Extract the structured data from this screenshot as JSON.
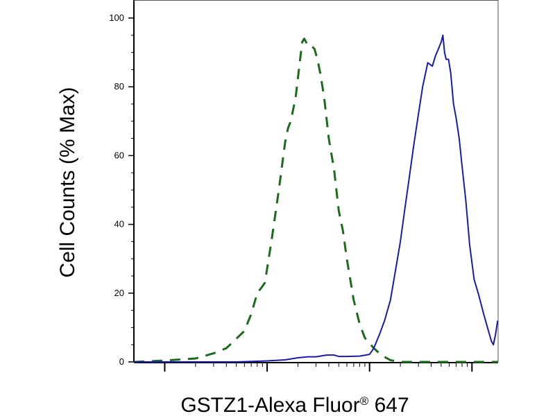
{
  "chart_data": {
    "type": "line",
    "xlabel_main": "GSTZ1-Alexa Fluor",
    "xlabel_mark": "®",
    "xlabel_tail": " 647",
    "ylabel": "Cell Counts (% Max)",
    "x_scale": "log",
    "xlim": [
      0.5,
      1800
    ],
    "ylim": [
      0,
      100
    ],
    "yticks": [
      0,
      20,
      40,
      60,
      80,
      100
    ],
    "x_major_ticks": [
      1,
      10,
      100,
      1000
    ],
    "series": [
      {
        "color": "#1a6b1a",
        "style": "dashed",
        "points": [
          [
            0.5,
            0
          ],
          [
            1,
            0.4
          ],
          [
            2,
            1
          ],
          [
            3,
            2.5
          ],
          [
            4,
            4
          ],
          [
            6,
            9
          ],
          [
            7,
            14
          ],
          [
            8,
            20
          ],
          [
            9,
            22
          ],
          [
            9.5,
            23
          ],
          [
            11,
            35
          ],
          [
            13,
            50
          ],
          [
            15,
            64
          ],
          [
            16,
            68
          ],
          [
            17,
            70
          ],
          [
            19,
            77
          ],
          [
            21,
            88
          ],
          [
            22,
            93
          ],
          [
            23,
            94
          ],
          [
            24,
            93
          ],
          [
            25,
            92
          ],
          [
            27,
            92
          ],
          [
            29,
            91
          ],
          [
            31,
            88
          ],
          [
            33,
            84
          ],
          [
            36,
            77
          ],
          [
            40,
            65
          ],
          [
            45,
            56
          ],
          [
            50,
            44
          ],
          [
            55,
            38
          ],
          [
            60,
            30
          ],
          [
            70,
            18
          ],
          [
            80,
            11
          ],
          [
            90,
            7
          ],
          [
            110,
            4
          ],
          [
            130,
            2
          ],
          [
            160,
            0.5
          ],
          [
            200,
            0
          ],
          [
            1800,
            0
          ]
        ]
      },
      {
        "color": "#1a1aa8",
        "style": "solid",
        "points": [
          [
            0.5,
            0
          ],
          [
            5,
            0
          ],
          [
            10,
            0.3
          ],
          [
            15,
            0.6
          ],
          [
            20,
            1.2
          ],
          [
            25,
            1.5
          ],
          [
            30,
            1.5
          ],
          [
            38,
            2
          ],
          [
            45,
            2
          ],
          [
            50,
            1.6
          ],
          [
            60,
            1.6
          ],
          [
            80,
            1.7
          ],
          [
            100,
            2.2
          ],
          [
            110,
            4
          ],
          [
            125,
            8
          ],
          [
            140,
            12
          ],
          [
            160,
            18
          ],
          [
            180,
            27
          ],
          [
            200,
            35
          ],
          [
            220,
            44
          ],
          [
            240,
            52
          ],
          [
            270,
            63
          ],
          [
            300,
            72
          ],
          [
            330,
            80
          ],
          [
            370,
            87
          ],
          [
            410,
            86
          ],
          [
            440,
            89
          ],
          [
            470,
            91
          ],
          [
            500,
            93
          ],
          [
            520,
            95
          ],
          [
            540,
            90
          ],
          [
            560,
            88
          ],
          [
            590,
            88
          ],
          [
            620,
            84
          ],
          [
            660,
            75
          ],
          [
            700,
            71
          ],
          [
            750,
            65
          ],
          [
            800,
            57
          ],
          [
            870,
            47
          ],
          [
            950,
            34
          ],
          [
            1050,
            24
          ],
          [
            1150,
            20
          ],
          [
            1300,
            14
          ],
          [
            1450,
            9
          ],
          [
            1550,
            6
          ],
          [
            1620,
            5
          ],
          [
            1700,
            8
          ],
          [
            1780,
            12
          ]
        ]
      }
    ]
  }
}
